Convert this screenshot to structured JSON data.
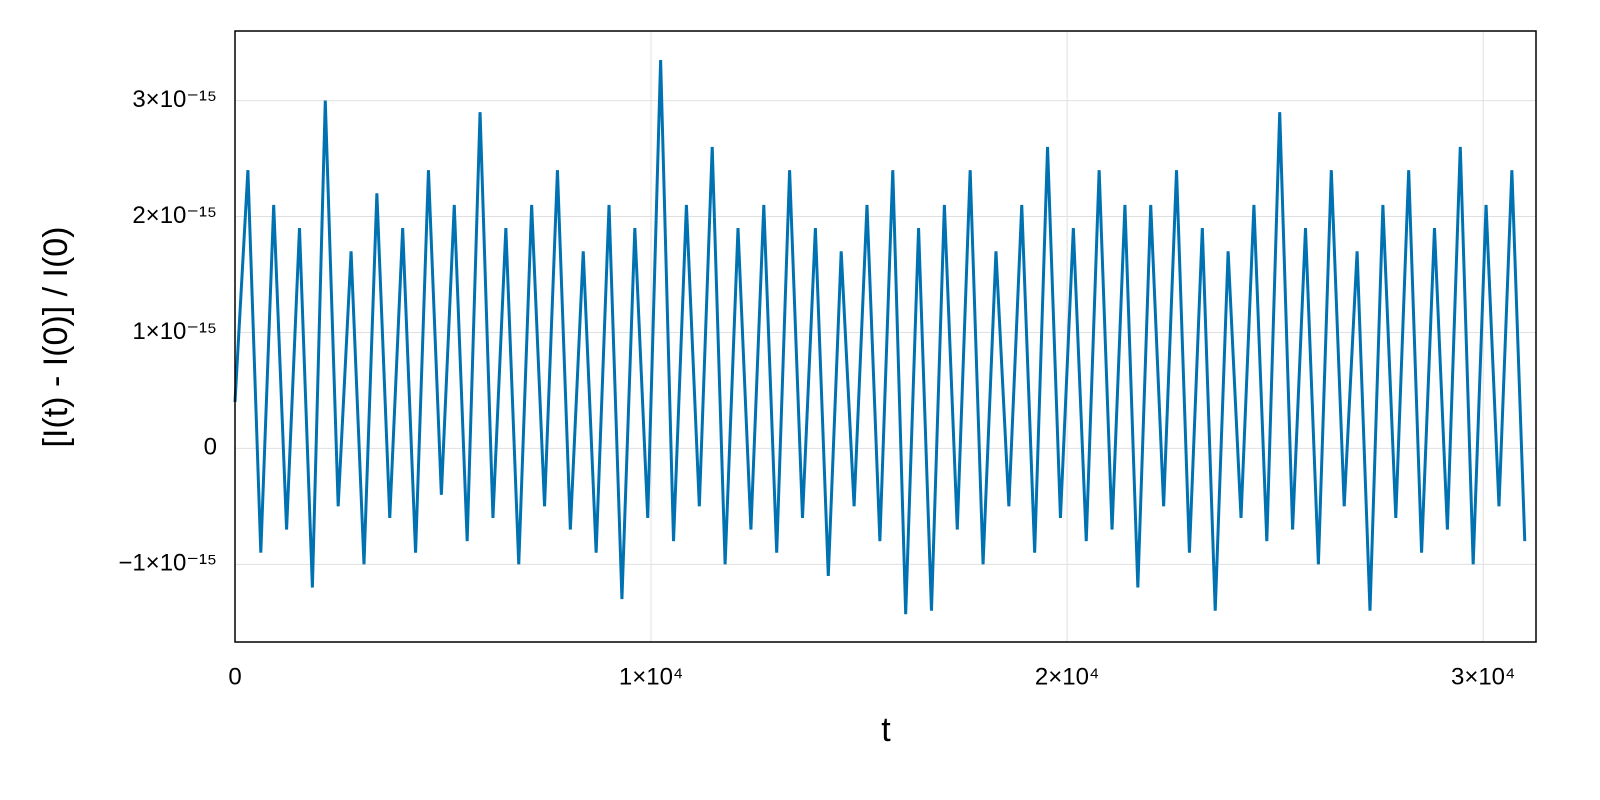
{
  "chart_data": {
    "type": "line",
    "xlabel": "t",
    "ylabel": "[I(t) - I(0)] / I(0)",
    "x": [
      0,
      310,
      620,
      930,
      1240,
      1550,
      1860,
      2170,
      2480,
      2790,
      3100,
      3410,
      3720,
      4030,
      4340,
      4650,
      4960,
      5270,
      5580,
      5890,
      6200,
      6510,
      6820,
      7130,
      7440,
      7750,
      8060,
      8370,
      8680,
      8990,
      9300,
      9610,
      9920,
      10230,
      10540,
      10850,
      11160,
      11470,
      11780,
      12090,
      12400,
      12710,
      13020,
      13330,
      13640,
      13950,
      14260,
      14570,
      14880,
      15190,
      15500,
      15810,
      16120,
      16430,
      16740,
      17050,
      17360,
      17670,
      17980,
      18290,
      18600,
      18910,
      19220,
      19530,
      19840,
      20150,
      20460,
      20770,
      21080,
      21390,
      21700,
      22010,
      22320,
      22630,
      22940,
      23250,
      23560,
      23870,
      24180,
      24490,
      24800,
      25110,
      25420,
      25730,
      26040,
      26350,
      26660,
      26970,
      27280,
      27590,
      27900,
      28210,
      28520,
      28830,
      29140,
      29450,
      29760,
      30070,
      30380,
      30690,
      31000
    ],
    "series": [
      {
        "color": "#0072b2",
        "values": [
          4e-16,
          2.4e-15,
          -9e-16,
          2.1e-15,
          -7e-16,
          1.9e-15,
          -1.2e-15,
          3e-15,
          -5e-16,
          1.7e-15,
          -1e-15,
          2.2e-15,
          -6e-16,
          1.9e-15,
          -9e-16,
          2.4e-15,
          -4e-16,
          2.1e-15,
          -8e-16,
          2.9e-15,
          -6e-16,
          1.9e-15,
          -1e-15,
          2.1e-15,
          -5e-16,
          2.4e-15,
          -7e-16,
          1.7e-15,
          -9e-16,
          2.1e-15,
          -1.3e-15,
          1.9e-15,
          -6e-16,
          3.35e-15,
          -8e-16,
          2.1e-15,
          -5e-16,
          2.6e-15,
          -1e-15,
          1.9e-15,
          -7e-16,
          2.1e-15,
          -9e-16,
          2.4e-15,
          -6e-16,
          1.9e-15,
          -1.1e-15,
          1.7e-15,
          -5e-16,
          2.1e-15,
          -8e-16,
          2.4e-15,
          -1.43e-15,
          1.9e-15,
          -1.4e-15,
          2.1e-15,
          -7e-16,
          2.4e-15,
          -1e-15,
          1.7e-15,
          -5e-16,
          2.1e-15,
          -9e-16,
          2.6e-15,
          -6e-16,
          1.9e-15,
          -8e-16,
          2.4e-15,
          -7e-16,
          2.1e-15,
          -1.2e-15,
          2.1e-15,
          -5e-16,
          2.4e-15,
          -9e-16,
          1.9e-15,
          -1.4e-15,
          1.7e-15,
          -6e-16,
          2.1e-15,
          -8e-16,
          2.9e-15,
          -7e-16,
          1.9e-15,
          -1e-15,
          2.4e-15,
          -5e-16,
          1.7e-15,
          -1.4e-15,
          2.1e-15,
          -6e-16,
          2.4e-15,
          -9e-16,
          1.9e-15,
          -7e-16,
          2.6e-15,
          -1e-15,
          2.1e-15,
          -5e-16,
          2.4e-15,
          -8e-16
        ]
      }
    ],
    "xlim": [
      0,
      31270
    ],
    "ylim": [
      -1.67e-15,
      3.6e-15
    ],
    "xticks": [
      0,
      {
        "value": 10000,
        "label": "1×10⁴"
      },
      {
        "value": 20000,
        "label": "2×10⁴"
      },
      {
        "value": 30000,
        "label": "3×10⁴"
      }
    ],
    "yticks": [
      {
        "value": -1e-15,
        "label": "−1×10⁻¹⁵"
      },
      0,
      {
        "value": 1e-15,
        "label": "1×10⁻¹⁵"
      },
      {
        "value": 2e-15,
        "label": "2×10⁻¹⁵"
      },
      {
        "value": 3e-15,
        "label": "3×10⁻¹⁵"
      }
    ],
    "grid": true
  }
}
